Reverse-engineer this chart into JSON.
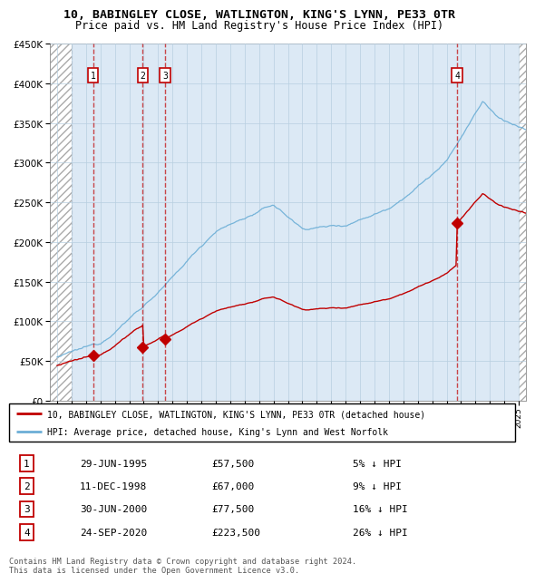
{
  "title1": "10, BABINGLEY CLOSE, WATLINGTON, KING'S LYNN, PE33 0TR",
  "title2": "Price paid vs. HM Land Registry's House Price Index (HPI)",
  "sold_dates_num": [
    1995.49,
    1998.94,
    2000.49,
    2020.73
  ],
  "sold_prices": [
    57500,
    67000,
    77500,
    223500
  ],
  "sold_labels": [
    "1",
    "2",
    "3",
    "4"
  ],
  "legend_line1": "10, BABINGLEY CLOSE, WATLINGTON, KING'S LYNN, PE33 0TR (detached house)",
  "legend_line2": "HPI: Average price, detached house, King's Lynn and West Norfolk",
  "table_data": [
    [
      "1",
      "29-JUN-1995",
      "£57,500",
      "5% ↓ HPI"
    ],
    [
      "2",
      "11-DEC-1998",
      "£67,000",
      "9% ↓ HPI"
    ],
    [
      "3",
      "30-JUN-2000",
      "£77,500",
      "16% ↓ HPI"
    ],
    [
      "4",
      "24-SEP-2020",
      "£223,500",
      "26% ↓ HPI"
    ]
  ],
  "footer": "Contains HM Land Registry data © Crown copyright and database right 2024.\nThis data is licensed under the Open Government Licence v3.0.",
  "hpi_color": "#6baed6",
  "sold_color": "#c00000",
  "bg_color": "#dce9f5",
  "grid_color": "#b8cfe0",
  "ylim": [
    0,
    450000
  ],
  "xlim_start": 1992.5,
  "xlim_end": 2025.5
}
